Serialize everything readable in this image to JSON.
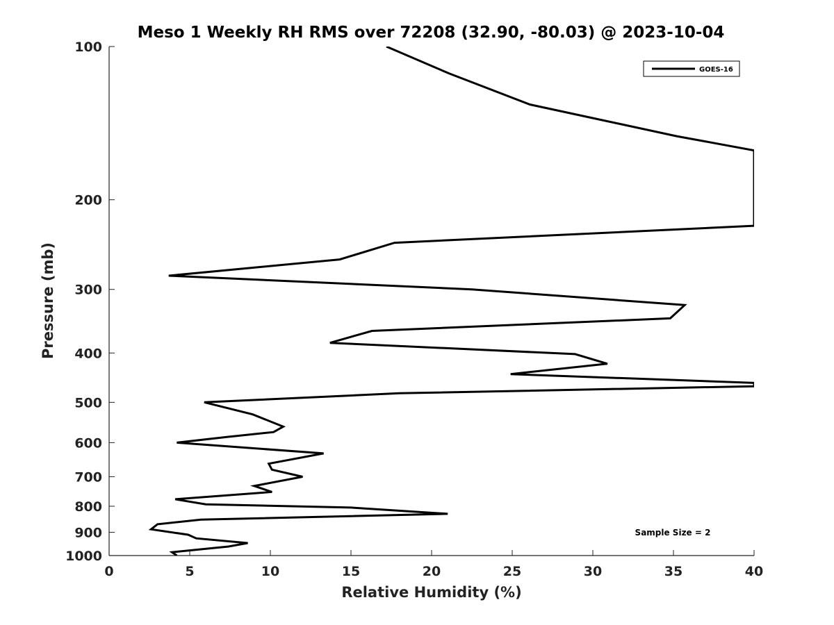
{
  "chart_data": {
    "type": "line",
    "title": "Meso 1 Weekly RH RMS over 72208 (32.90, -80.03) @ 2023-10-04",
    "xlabel": "Relative Humidity (%)",
    "ylabel": "Pressure (mb)",
    "xlim": [
      0,
      40
    ],
    "ylim": [
      1000,
      100
    ],
    "y_scale": "log",
    "grid": false,
    "legend_position": "top-right",
    "x_ticks": [
      0,
      5,
      10,
      15,
      20,
      25,
      30,
      35,
      40
    ],
    "y_ticks": [
      100,
      200,
      300,
      400,
      500,
      600,
      700,
      800,
      900,
      1000
    ],
    "series": [
      {
        "name": "GOES-16",
        "color": "#000000",
        "x": [
          17.2,
          21.1,
          26.1,
          35.2,
          40.0,
          40.0,
          17.7,
          14.3,
          3.7,
          22.5,
          35.7,
          34.8,
          16.3,
          13.7,
          28.9,
          30.9,
          24.9,
          40.0,
          40.0,
          18.0,
          5.9,
          8.9,
          10.8,
          10.2,
          7.3,
          4.2,
          13.3,
          9.9,
          10.1,
          12.0,
          9.0,
          10.1,
          4.1,
          6.0,
          15.0,
          21.0,
          5.7,
          3.0,
          2.6,
          4.9,
          5.4,
          8.6,
          7.4,
          3.9,
          4.2
        ],
        "y": [
          100,
          113,
          130,
          150,
          160,
          225,
          243,
          262,
          282,
          300,
          322,
          342,
          362,
          382,
          402,
          420,
          440,
          458,
          465,
          480,
          500,
          528,
          558,
          572,
          585,
          600,
          630,
          660,
          678,
          700,
          730,
          750,
          775,
          793,
          805,
          828,
          850,
          868,
          888,
          910,
          925,
          945,
          960,
          985,
          1000
        ]
      }
    ],
    "annotations": [
      "Sample Size = 2"
    ]
  }
}
